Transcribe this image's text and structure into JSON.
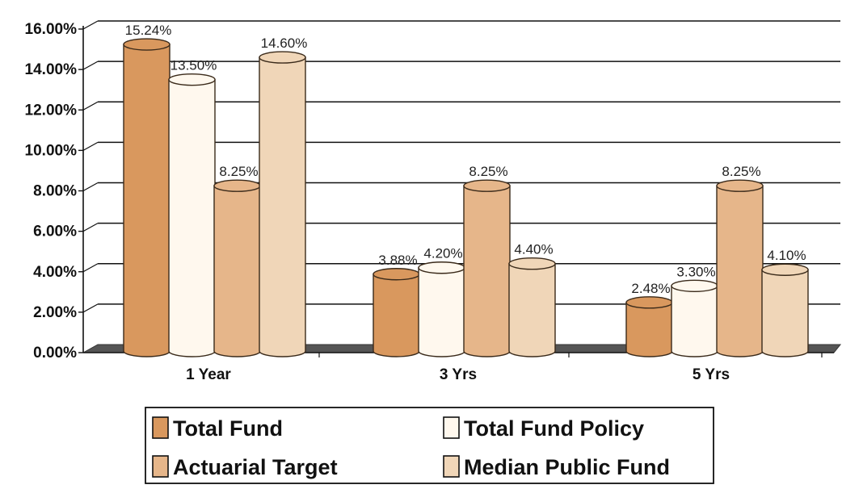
{
  "chart_data": {
    "type": "bar",
    "categories": [
      "1 Year",
      "3 Yrs",
      "5 Yrs"
    ],
    "series": [
      {
        "name": "Total Fund",
        "values": [
          15.24,
          3.88,
          2.48
        ],
        "labels": [
          "15.24%",
          "3.88%",
          "2.48%"
        ],
        "color": "#D9985E"
      },
      {
        "name": "Total Fund Policy",
        "values": [
          13.5,
          4.2,
          3.3
        ],
        "labels": [
          "13.50%",
          "4.20%",
          "3.30%"
        ],
        "color": "#FFF8EE"
      },
      {
        "name": "Actuarial Target",
        "values": [
          8.25,
          8.25,
          8.25
        ],
        "labels": [
          "8.25%",
          "8.25%",
          "8.25%"
        ],
        "color": "#E6B68A"
      },
      {
        "name": "Median Public Fund",
        "values": [
          14.6,
          4.4,
          4.1
        ],
        "labels": [
          "14.60%",
          "4.40%",
          "4.10%"
        ],
        "color": "#F0D6B8"
      }
    ],
    "ylim": [
      0,
      16
    ],
    "yticks": [
      "0.00%",
      "2.00%",
      "4.00%",
      "6.00%",
      "8.00%",
      "10.00%",
      "12.00%",
      "14.00%",
      "16.00%"
    ],
    "grid": true,
    "legend_position": "bottom",
    "three_d": true
  }
}
